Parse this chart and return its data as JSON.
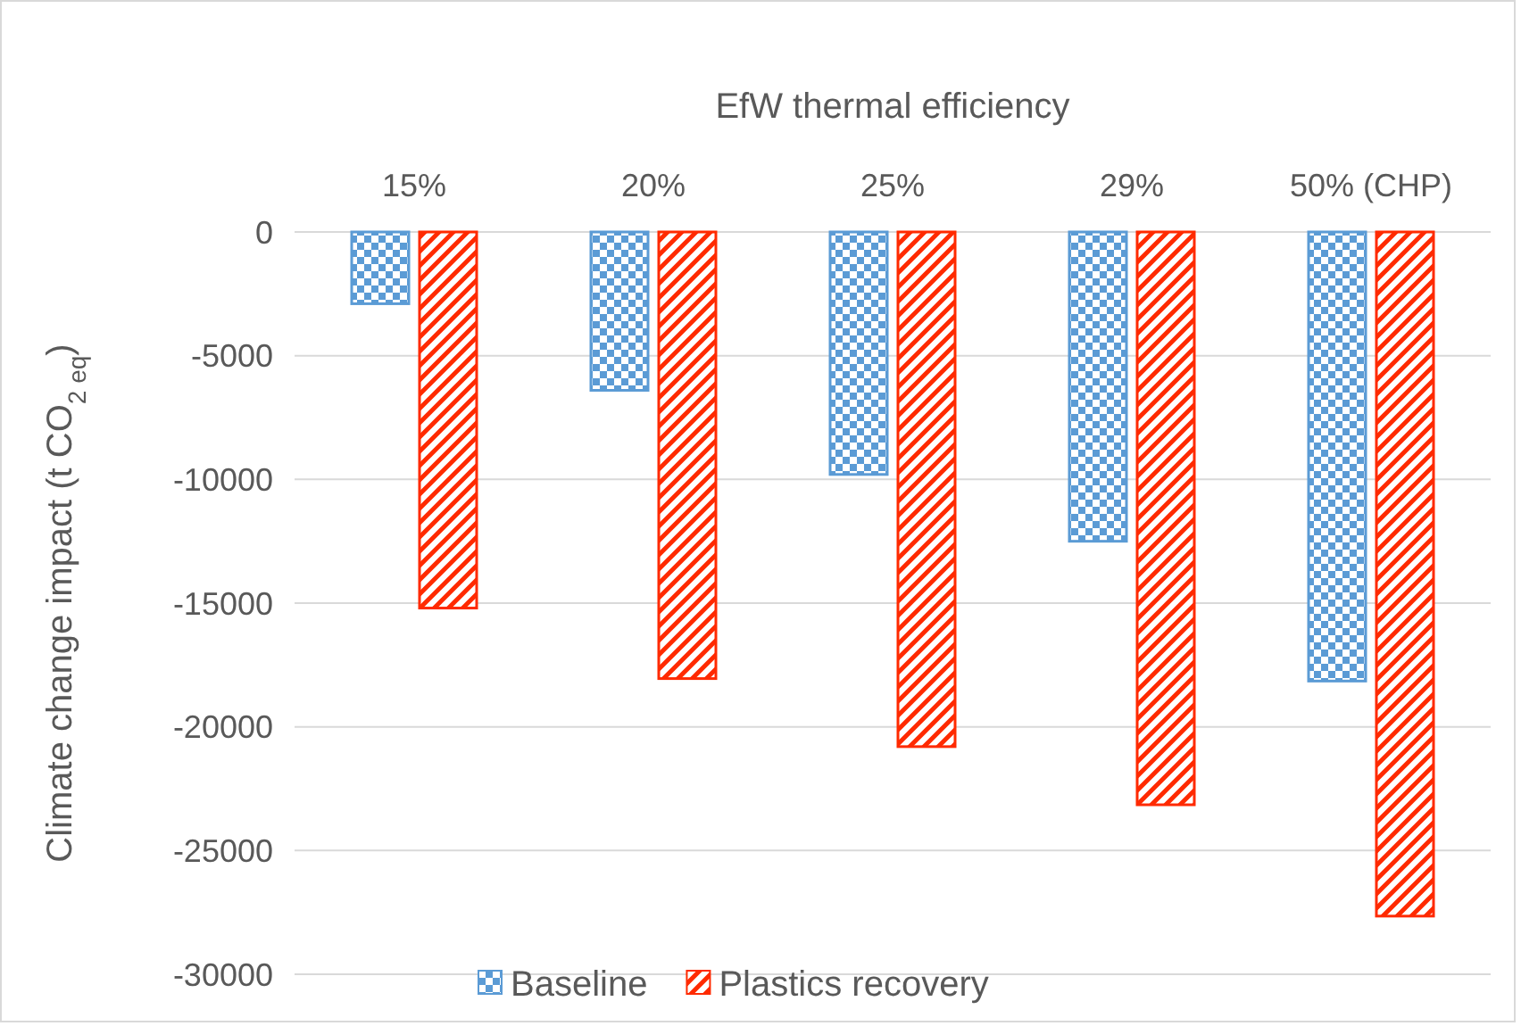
{
  "chart_data": {
    "type": "bar",
    "title": "EfW thermal efficiency",
    "ylabel": "Climate change impact (t CO$_{2 eq}$)",
    "categories": [
      "15%",
      "20%",
      "25%",
      "29%",
      "50% (CHP)"
    ],
    "series": [
      {
        "name": "Baseline",
        "color": "#5b9bd5",
        "values": [
          -2900,
          -6400,
          -9800,
          -12500,
          -18150
        ]
      },
      {
        "name": "Plastics recovery",
        "color": "#ff2a00",
        "values": [
          -15200,
          -18050,
          -20800,
          -23150,
          -27650
        ]
      }
    ],
    "ylim": [
      -30000,
      0
    ],
    "yticks": [
      -30000,
      -25000,
      -20000,
      -15000,
      -10000,
      -5000,
      0
    ],
    "grid": "y",
    "legend": "bottom"
  }
}
